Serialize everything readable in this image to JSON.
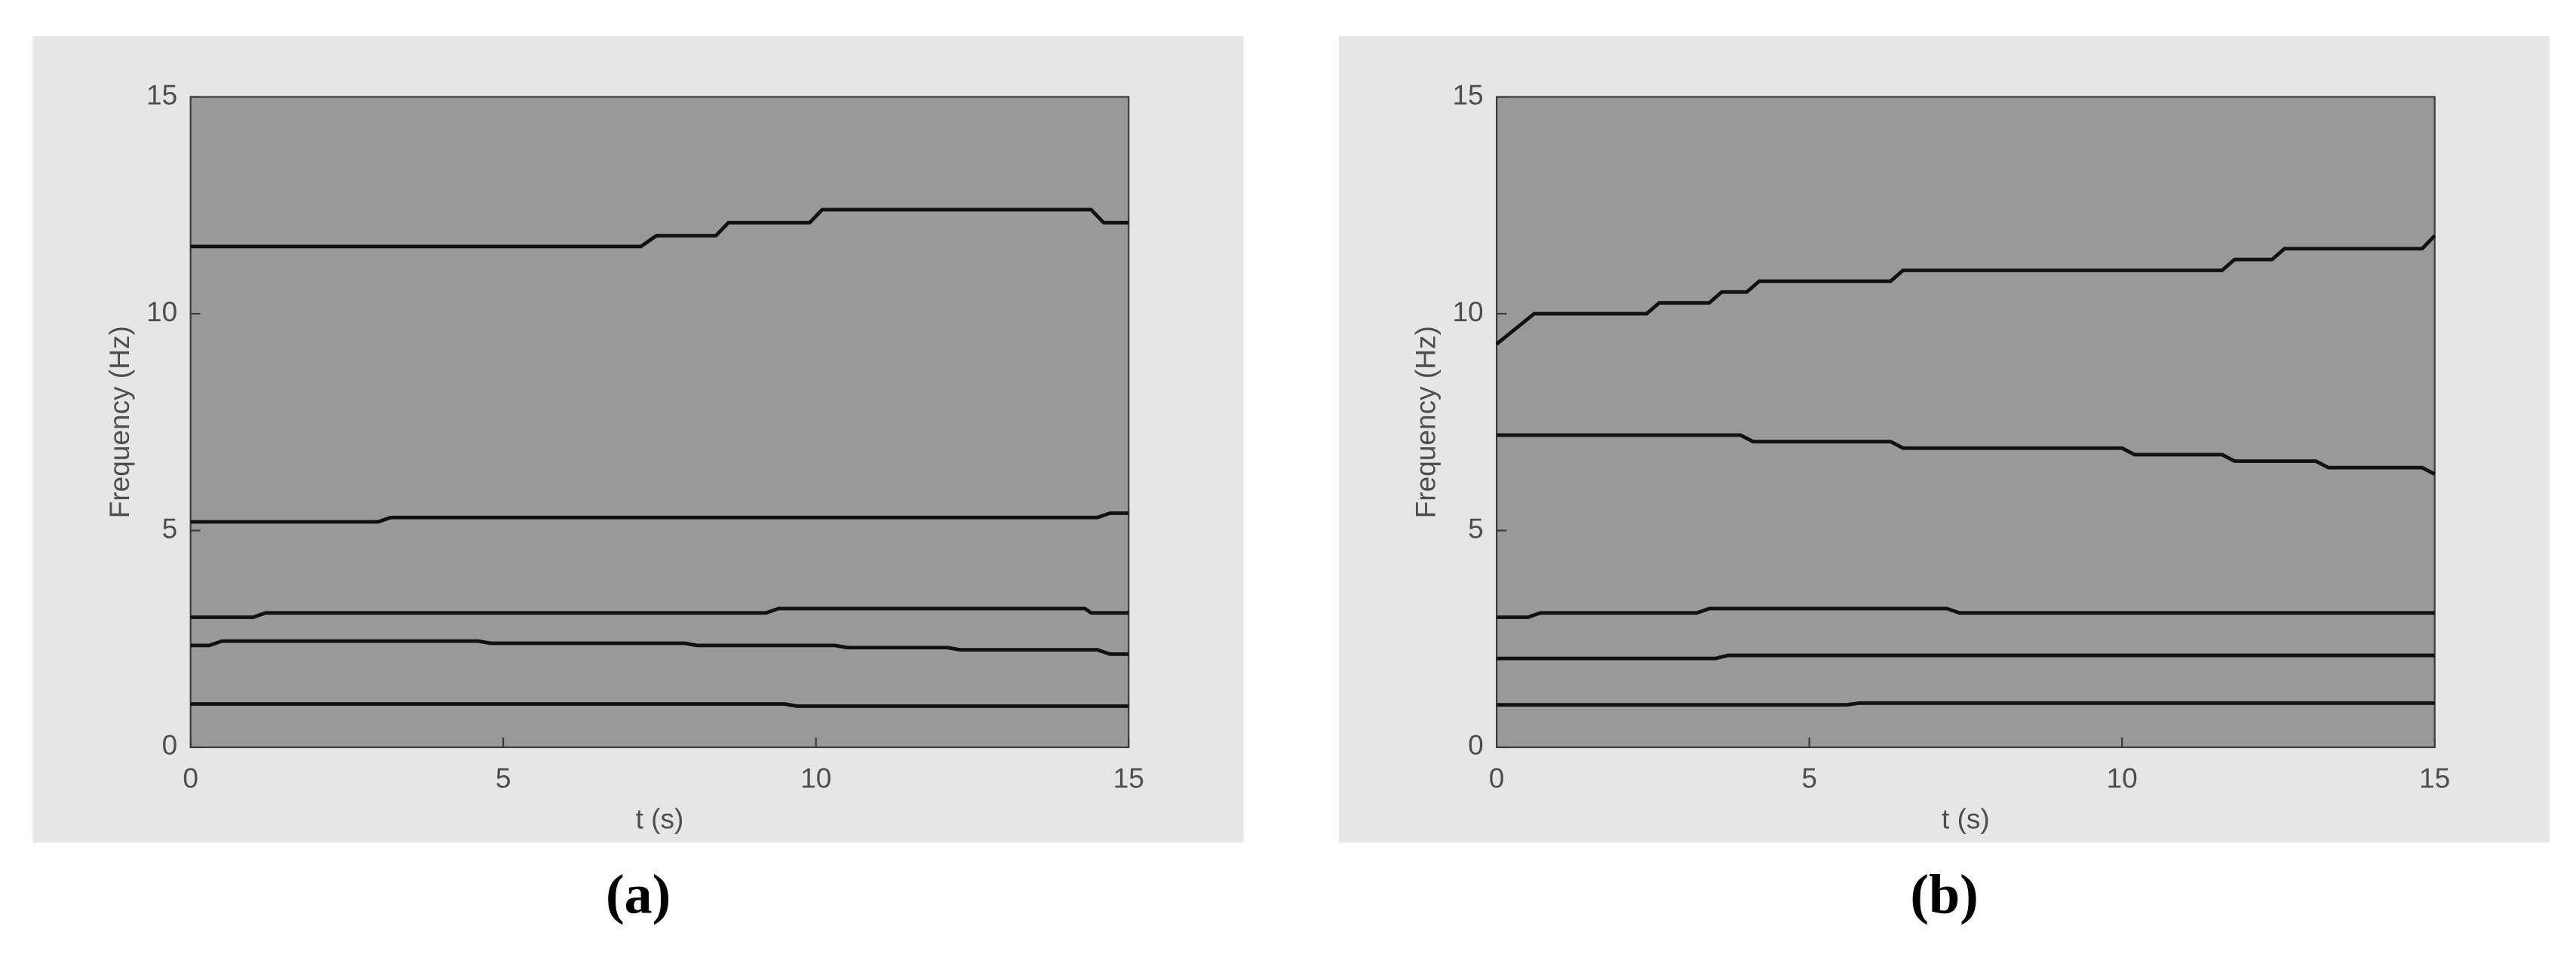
{
  "chart_data": [
    {
      "type": "line",
      "caption": "(a)",
      "x_label": "t (s)",
      "y_label": "Frequency (Hz)",
      "xlim": [
        0,
        15
      ],
      "ylim": [
        0,
        15
      ],
      "xticks": [
        0,
        5,
        10,
        15
      ],
      "yticks": [
        0,
        5,
        10,
        15
      ],
      "grid": false,
      "series": [
        {
          "color": "#111111",
          "x": [
            0,
            7.2,
            7.45,
            8.4,
            8.6,
            9.9,
            10.1,
            14.4,
            14.6,
            15
          ],
          "values": [
            11.55,
            11.55,
            11.8,
            11.8,
            12.1,
            12.1,
            12.4,
            12.4,
            12.1,
            12.1
          ]
        },
        {
          "color": "#111111",
          "x": [
            0,
            3.0,
            3.2,
            14.5,
            14.7,
            15
          ],
          "values": [
            5.2,
            5.2,
            5.3,
            5.3,
            5.4,
            5.4
          ]
        },
        {
          "color": "#111111",
          "x": [
            0,
            1.0,
            1.2,
            9.2,
            9.4,
            14.3,
            14.4,
            15
          ],
          "values": [
            3.0,
            3.0,
            3.1,
            3.1,
            3.2,
            3.2,
            3.1,
            3.1
          ]
        },
        {
          "color": "#111111",
          "x": [
            0,
            0.3,
            0.5,
            4.6,
            4.8,
            7.9,
            8.1,
            10.3,
            10.5,
            12.1,
            12.3,
            14.5,
            14.7,
            15
          ],
          "values": [
            2.35,
            2.35,
            2.45,
            2.45,
            2.4,
            2.4,
            2.35,
            2.35,
            2.3,
            2.3,
            2.25,
            2.25,
            2.15,
            2.15
          ]
        },
        {
          "color": "#111111",
          "x": [
            0,
            9.5,
            9.7,
            15
          ],
          "values": [
            1.0,
            1.0,
            0.95,
            0.95
          ]
        }
      ]
    },
    {
      "type": "line",
      "caption": "(b)",
      "x_label": "t (s)",
      "y_label": "Frequency (Hz)",
      "xlim": [
        0,
        15
      ],
      "ylim": [
        0,
        15
      ],
      "xticks": [
        0,
        5,
        10,
        15
      ],
      "yticks": [
        0,
        5,
        10,
        15
      ],
      "grid": false,
      "series": [
        {
          "color": "#111111",
          "x": [
            0,
            0.6,
            2.4,
            2.6,
            3.4,
            3.6,
            4.0,
            4.2,
            6.3,
            6.5,
            11.6,
            11.8,
            12.4,
            12.6,
            14.8,
            15
          ],
          "values": [
            9.3,
            10,
            10,
            10.25,
            10.25,
            10.5,
            10.5,
            10.75,
            10.75,
            11.0,
            11.0,
            11.25,
            11.25,
            11.5,
            11.5,
            11.8
          ]
        },
        {
          "color": "#111111",
          "x": [
            0,
            3.9,
            4.1,
            6.3,
            6.5,
            10.0,
            10.2,
            11.6,
            11.8,
            13.1,
            13.3,
            14.8,
            15
          ],
          "values": [
            7.2,
            7.2,
            7.05,
            7.05,
            6.9,
            6.9,
            6.75,
            6.75,
            6.6,
            6.6,
            6.45,
            6.45,
            6.3
          ]
        },
        {
          "color": "#111111",
          "x": [
            0,
            0.5,
            0.7,
            3.2,
            3.4,
            7.2,
            7.4,
            15
          ],
          "values": [
            3.0,
            3.0,
            3.1,
            3.1,
            3.2,
            3.2,
            3.1,
            3.1
          ]
        },
        {
          "color": "#111111",
          "x": [
            0,
            3.5,
            3.7,
            15
          ],
          "values": [
            2.05,
            2.05,
            2.12,
            2.12
          ]
        },
        {
          "color": "#111111",
          "x": [
            0,
            5.6,
            5.8,
            15
          ],
          "values": [
            0.98,
            0.98,
            1.02,
            1.02
          ]
        }
      ]
    }
  ]
}
